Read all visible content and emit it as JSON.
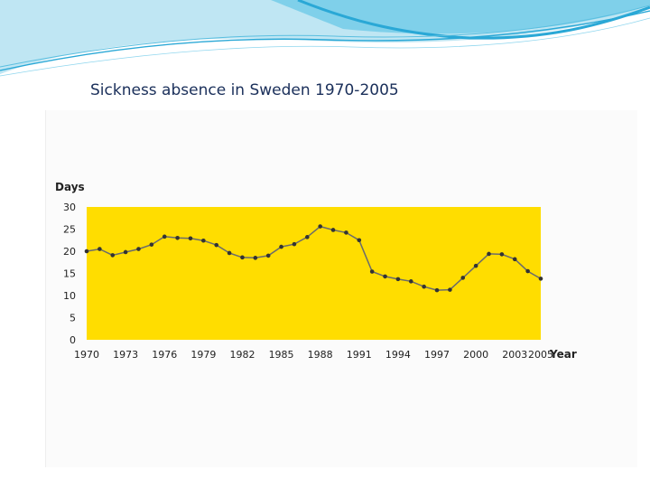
{
  "slide": {
    "title": "Sickness absence in Sweden 1970-2005",
    "colors": {
      "wave_dark": "#2aa8d6",
      "wave_light": "#bfe6f3",
      "title_text": "#1a2f5a"
    }
  },
  "chart_data": {
    "type": "line",
    "title": "",
    "ylabel": "Days",
    "xlabel": "Year",
    "ylim": [
      0,
      30
    ],
    "xlim": [
      1970,
      2005
    ],
    "yticks": [
      "0",
      "5",
      "10",
      "15",
      "20",
      "25",
      "30"
    ],
    "xtick_labels": [
      "1970",
      "1973",
      "1976",
      "1979",
      "1982",
      "1985",
      "1988",
      "1991",
      "1994",
      "1997",
      "2000",
      "2003",
      "2005"
    ],
    "xtick_values": [
      1970,
      1973,
      1976,
      1979,
      1982,
      1985,
      1988,
      1991,
      1994,
      1997,
      2000,
      2003,
      2005
    ],
    "plot_background": "#ffdd00",
    "line_color": "#6b6b6b",
    "marker_color": "#333333",
    "grid": false,
    "legend": "none",
    "series": [
      {
        "x": [
          1970,
          1971,
          1972,
          1973,
          1974,
          1975,
          1976,
          1977,
          1978,
          1979,
          1980,
          1981,
          1982,
          1983,
          1984,
          1985,
          1986,
          1987,
          1988,
          1989,
          1990,
          1991,
          1992,
          1993,
          1994,
          1995,
          1996,
          1997,
          1998,
          1999,
          2000,
          2001,
          2002,
          2003,
          2004,
          2005
        ],
        "values": [
          20,
          20.5,
          19.1,
          19.8,
          20.5,
          21.5,
          23.3,
          23.0,
          22.9,
          22.4,
          21.4,
          19.6,
          18.6,
          18.5,
          19.0,
          21.0,
          21.6,
          23.2,
          25.6,
          24.8,
          24.2,
          22.5,
          15.4,
          14.3,
          13.7,
          13.2,
          12.0,
          11.2,
          11.3,
          14.0,
          16.7,
          19.4,
          19.3,
          18.2,
          15.5,
          13.8
        ]
      }
    ]
  }
}
